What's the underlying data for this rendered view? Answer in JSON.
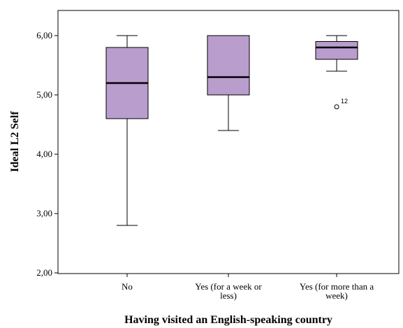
{
  "chart_data": {
    "type": "boxplot",
    "xlabel": "Having visited an English-speaking country",
    "ylabel": "Ideal L2 Self",
    "ylim": [
      2,
      6.4
    ],
    "yticks": [
      {
        "value": 2,
        "label": "2,00"
      },
      {
        "value": 3,
        "label": "3,00"
      },
      {
        "value": 4,
        "label": "4,00"
      },
      {
        "value": 5,
        "label": "5,00"
      },
      {
        "value": 6,
        "label": "6,00"
      }
    ],
    "grid": false,
    "box_color": "#b99dcd",
    "categories": [
      {
        "label_lines": [
          "No"
        ],
        "whisker_low": 2.8,
        "q1": 4.6,
        "median": 5.2,
        "q3": 5.8,
        "whisker_high": 6.0,
        "outliers": []
      },
      {
        "label_lines": [
          "Yes (for a week or",
          "less)"
        ],
        "whisker_low": 4.4,
        "q1": 5.0,
        "median": 5.3,
        "q3": 6.0,
        "whisker_high": 6.0,
        "outliers": []
      },
      {
        "label_lines": [
          "Yes (for more than a",
          "week)"
        ],
        "whisker_low": 5.4,
        "q1": 5.6,
        "median": 5.8,
        "q3": 5.9,
        "whisker_high": 6.0,
        "outliers": [
          {
            "value": 4.8,
            "label": "12"
          }
        ]
      }
    ]
  }
}
